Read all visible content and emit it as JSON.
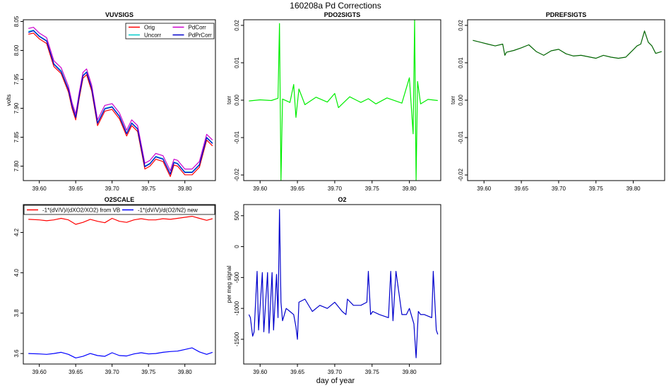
{
  "title": "160208a   Pd Corrections",
  "footer_xlabel": "day of year",
  "chart_data": [
    {
      "id": "vuvsigs",
      "type": "line",
      "title": "VUVSIGS",
      "ylabel": "volts",
      "xlim": [
        39.578,
        39.842
      ],
      "ylim": [
        7.775,
        8.053
      ],
      "xticks": [
        39.6,
        39.65,
        39.7,
        39.75,
        39.8
      ],
      "xtick_labels": [
        "39.60",
        "39.65",
        "39.70",
        "39.75",
        "39.80"
      ],
      "yticks": [
        7.8,
        7.85,
        7.9,
        7.95,
        8.0,
        8.05
      ],
      "ytick_labels": [
        "7.80",
        "7.85",
        "7.90",
        "7.95",
        "8.00",
        "8.05"
      ],
      "legend": [
        {
          "label": "Orig",
          "color": "#ff0000"
        },
        {
          "label": "PdCorr",
          "color": "#cc00cc"
        },
        {
          "label": "Uncorr",
          "color": "#00cccc"
        },
        {
          "label": "PdPrCorr",
          "color": "#0000cc"
        }
      ],
      "series": [
        {
          "name": "Orig",
          "color": "#ff0000",
          "x": [
            39.585,
            39.592,
            39.6,
            39.61,
            39.62,
            39.63,
            39.64,
            39.645,
            39.65,
            39.655,
            39.66,
            39.665,
            39.672,
            39.68,
            39.69,
            39.7,
            39.71,
            39.72,
            39.727,
            39.735,
            39.745,
            39.752,
            39.76,
            39.77,
            39.78,
            39.785,
            39.79,
            39.8,
            39.81,
            39.82,
            39.83,
            39.838
          ],
          "y": [
            8.028,
            8.03,
            8.02,
            8.012,
            7.972,
            7.96,
            7.928,
            7.9,
            7.88,
            7.918,
            7.952,
            7.958,
            7.93,
            7.87,
            7.895,
            7.898,
            7.882,
            7.852,
            7.87,
            7.86,
            7.795,
            7.8,
            7.812,
            7.808,
            7.782,
            7.802,
            7.8,
            7.785,
            7.785,
            7.798,
            7.845,
            7.835
          ]
        },
        {
          "name": "Uncorr",
          "color": "#00cccc",
          "x": [
            39.585,
            39.592,
            39.6,
            39.61,
            39.62,
            39.63,
            39.64,
            39.645,
            39.65,
            39.655,
            39.66,
            39.665,
            39.672,
            39.68,
            39.69,
            39.7,
            39.71,
            39.72,
            39.727,
            39.735,
            39.745,
            39.752,
            39.76,
            39.77,
            39.78,
            39.785,
            39.79,
            39.8,
            39.81,
            39.82,
            39.83,
            39.838
          ],
          "y": [
            8.033,
            8.035,
            8.025,
            8.017,
            7.977,
            7.965,
            7.933,
            7.905,
            7.885,
            7.923,
            7.957,
            7.963,
            7.935,
            7.875,
            7.9,
            7.903,
            7.887,
            7.857,
            7.875,
            7.865,
            7.8,
            7.805,
            7.817,
            7.813,
            7.787,
            7.807,
            7.805,
            7.79,
            7.79,
            7.803,
            7.85,
            7.84
          ]
        },
        {
          "name": "PdCorr",
          "color": "#cc00cc",
          "x": [
            39.585,
            39.592,
            39.6,
            39.61,
            39.62,
            39.63,
            39.64,
            39.645,
            39.65,
            39.655,
            39.66,
            39.665,
            39.672,
            39.68,
            39.69,
            39.7,
            39.71,
            39.72,
            39.727,
            39.735,
            39.745,
            39.752,
            39.76,
            39.77,
            39.78,
            39.785,
            39.79,
            39.8,
            39.81,
            39.82,
            39.83,
            39.838
          ],
          "y": [
            8.038,
            8.04,
            8.03,
            8.022,
            7.982,
            7.97,
            7.938,
            7.91,
            7.89,
            7.928,
            7.962,
            7.968,
            7.94,
            7.88,
            7.905,
            7.908,
            7.892,
            7.862,
            7.88,
            7.87,
            7.805,
            7.81,
            7.822,
            7.818,
            7.792,
            7.812,
            7.81,
            7.795,
            7.795,
            7.808,
            7.855,
            7.845
          ]
        },
        {
          "name": "PdPrCorr",
          "color": "#0000cc",
          "x": [
            39.585,
            39.592,
            39.6,
            39.61,
            39.62,
            39.63,
            39.64,
            39.645,
            39.65,
            39.655,
            39.66,
            39.665,
            39.672,
            39.68,
            39.69,
            39.7,
            39.71,
            39.72,
            39.727,
            39.735,
            39.745,
            39.752,
            39.76,
            39.77,
            39.78,
            39.785,
            39.79,
            39.8,
            39.81,
            39.82,
            39.83,
            39.838
          ],
          "y": [
            8.031,
            8.034,
            8.024,
            8.016,
            7.976,
            7.963,
            7.932,
            7.904,
            7.884,
            7.922,
            7.956,
            7.962,
            7.934,
            7.874,
            7.899,
            7.902,
            7.886,
            7.856,
            7.874,
            7.864,
            7.799,
            7.804,
            7.816,
            7.812,
            7.786,
            7.806,
            7.804,
            7.789,
            7.789,
            7.802,
            7.849,
            7.839
          ]
        }
      ]
    },
    {
      "id": "pdo2sigts",
      "type": "line",
      "title": "PDO2SIGTS",
      "ylabel": "torr",
      "xlim": [
        39.578,
        39.842
      ],
      "ylim": [
        -0.0215,
        0.0215
      ],
      "xticks": [
        39.6,
        39.65,
        39.7,
        39.75,
        39.8
      ],
      "xtick_labels": [
        "39.60",
        "39.65",
        "39.70",
        "39.75",
        "39.80"
      ],
      "yticks": [
        -0.02,
        -0.01,
        0.0,
        0.01,
        0.02
      ],
      "ytick_labels": [
        "-0.02",
        "-0.01",
        "0.00",
        "0.01",
        "0.02"
      ],
      "series": [
        {
          "name": "PDO2SIGTS",
          "color": "#00ee00",
          "x": [
            39.585,
            39.6,
            39.615,
            39.624,
            39.626,
            39.628,
            39.63,
            39.64,
            39.645,
            39.648,
            39.652,
            39.66,
            39.675,
            39.69,
            39.7,
            39.705,
            39.72,
            39.735,
            39.745,
            39.755,
            39.77,
            39.79,
            39.8,
            39.805,
            39.807,
            39.809,
            39.811,
            39.815,
            39.825,
            39.838
          ],
          "y": [
            -0.0002,
            0.0001,
            -0.0001,
            0.0005,
            0.0205,
            -0.0215,
            0.0003,
            -0.0006,
            0.0042,
            -0.0046,
            0.003,
            -0.0012,
            0.0008,
            -0.0005,
            0.0018,
            -0.002,
            0.0009,
            -0.0006,
            0.0004,
            -0.001,
            0.0006,
            -0.0008,
            0.006,
            -0.009,
            0.0215,
            -0.0215,
            0.005,
            -0.001,
            0.0002,
            -0.0001
          ]
        }
      ]
    },
    {
      "id": "pdrefsigts",
      "type": "line",
      "title": "PDREFSIGTS",
      "ylabel": "torr",
      "xlim": [
        39.578,
        39.842
      ],
      "ylim": [
        -0.0215,
        0.0215
      ],
      "xticks": [
        39.6,
        39.65,
        39.7,
        39.75,
        39.8
      ],
      "xtick_labels": [
        "39.60",
        "39.65",
        "39.70",
        "39.75",
        "39.80"
      ],
      "yticks": [
        -0.02,
        -0.01,
        0.0,
        0.01,
        0.02
      ],
      "ytick_labels": [
        "-0.02",
        "-0.01",
        "0.00",
        "0.01",
        "0.02"
      ],
      "series": [
        {
          "name": "PDREFSIGTS",
          "color": "#006400",
          "x": [
            39.585,
            39.595,
            39.605,
            39.615,
            39.625,
            39.628,
            39.63,
            39.64,
            39.65,
            39.66,
            39.67,
            39.68,
            39.69,
            39.7,
            39.71,
            39.72,
            39.73,
            39.74,
            39.75,
            39.76,
            39.77,
            39.78,
            39.79,
            39.8,
            39.805,
            39.81,
            39.815,
            39.82,
            39.825,
            39.83,
            39.838
          ],
          "y": [
            0.016,
            0.0155,
            0.015,
            0.0145,
            0.015,
            0.012,
            0.0128,
            0.0133,
            0.014,
            0.0148,
            0.013,
            0.012,
            0.0132,
            0.0136,
            0.0124,
            0.0118,
            0.012,
            0.0116,
            0.0112,
            0.012,
            0.0115,
            0.0112,
            0.0115,
            0.0135,
            0.0145,
            0.015,
            0.0185,
            0.0155,
            0.0145,
            0.0125,
            0.013
          ]
        }
      ]
    },
    {
      "id": "o2scale",
      "type": "line",
      "title": "O2SCALE",
      "ylabel": "",
      "xlim": [
        39.578,
        39.842
      ],
      "ylim": [
        3.548,
        4.338
      ],
      "xticks": [
        39.6,
        39.65,
        39.7,
        39.75,
        39.8
      ],
      "xtick_labels": [
        "39.60",
        "39.65",
        "39.70",
        "39.75",
        "39.80"
      ],
      "yticks": [
        3.6,
        3.8,
        4.0,
        4.2
      ],
      "ytick_labels": [
        "3.6",
        "3.8",
        "4.0",
        "4.2"
      ],
      "legend": [
        {
          "label": "-1*(dV/V)/(dXO2/XO2) from VB",
          "color": "#ff0000"
        },
        {
          "label": "-1*(dV/V)/d(O2/N2) new",
          "color": "#0000ff"
        }
      ],
      "series": [
        {
          "name": "-1*(dV/V)/(dXO2/XO2) from VB",
          "color": "#ff0000",
          "x": [
            39.585,
            39.6,
            39.61,
            39.62,
            39.63,
            39.64,
            39.65,
            39.66,
            39.67,
            39.68,
            39.69,
            39.7,
            39.71,
            39.72,
            39.73,
            39.74,
            39.75,
            39.76,
            39.77,
            39.78,
            39.79,
            39.8,
            39.81,
            39.82,
            39.83,
            39.838
          ],
          "y": [
            4.265,
            4.262,
            4.258,
            4.262,
            4.27,
            4.262,
            4.24,
            4.25,
            4.265,
            4.255,
            4.248,
            4.27,
            4.255,
            4.25,
            4.262,
            4.268,
            4.262,
            4.262,
            4.268,
            4.265,
            4.27,
            4.275,
            4.28,
            4.27,
            4.26,
            4.268
          ]
        },
        {
          "name": "-1*(dV/V)/d(O2/N2) new",
          "color": "#0000ff",
          "x": [
            39.585,
            39.6,
            39.61,
            39.62,
            39.63,
            39.64,
            39.65,
            39.66,
            39.67,
            39.68,
            39.69,
            39.7,
            39.71,
            39.72,
            39.73,
            39.74,
            39.75,
            39.76,
            39.77,
            39.78,
            39.79,
            39.8,
            39.81,
            39.82,
            39.83,
            39.838
          ],
          "y": [
            3.6,
            3.598,
            3.596,
            3.6,
            3.606,
            3.596,
            3.578,
            3.586,
            3.6,
            3.59,
            3.586,
            3.604,
            3.59,
            3.588,
            3.598,
            3.604,
            3.598,
            3.6,
            3.606,
            3.61,
            3.612,
            3.62,
            3.628,
            3.608,
            3.596,
            3.606
          ]
        }
      ]
    },
    {
      "id": "o2",
      "type": "line",
      "title": "O2",
      "ylabel": "per meg signal",
      "xlim": [
        39.578,
        39.842
      ],
      "ylim": [
        -1900,
        680
      ],
      "xticks": [
        39.6,
        39.65,
        39.7,
        39.75,
        39.8
      ],
      "xtick_labels": [
        "39.60",
        "39.65",
        "39.70",
        "39.75",
        "39.80"
      ],
      "yticks": [
        -1500,
        -1000,
        -500,
        0,
        500
      ],
      "ytick_labels": [
        "-1500",
        "-1000",
        "-500",
        "0",
        "500"
      ],
      "series": [
        {
          "name": "O2",
          "color": "#0000cc",
          "x": [
            39.585,
            39.587,
            39.59,
            39.592,
            39.596,
            39.598,
            39.603,
            39.605,
            39.61,
            39.612,
            39.616,
            39.618,
            39.622,
            39.624,
            39.626,
            39.628,
            39.63,
            39.635,
            39.64,
            39.645,
            39.648,
            39.65,
            39.652,
            39.66,
            39.67,
            39.68,
            39.69,
            39.7,
            39.71,
            39.715,
            39.717,
            39.725,
            39.735,
            39.743,
            39.745,
            39.748,
            39.751,
            39.76,
            39.772,
            39.775,
            39.778,
            39.782,
            39.79,
            39.796,
            39.8,
            39.806,
            39.809,
            39.812,
            39.815,
            39.82,
            39.83,
            39.832,
            39.836,
            39.838
          ],
          "y": [
            -1100,
            -1150,
            -1450,
            -1380,
            -400,
            -1350,
            -420,
            -1380,
            -420,
            -1400,
            -420,
            -1350,
            -450,
            -1150,
            600,
            -900,
            -1200,
            -1000,
            -1050,
            -1100,
            -1300,
            -1500,
            -900,
            -850,
            -1050,
            -950,
            -1000,
            -900,
            -1050,
            -1100,
            -850,
            -950,
            -950,
            -900,
            -400,
            -1100,
            -1050,
            -1100,
            -1150,
            -400,
            -1200,
            -400,
            -1100,
            -1100,
            -1000,
            -1250,
            -1800,
            -1050,
            -1100,
            -1100,
            -1150,
            -400,
            -1350,
            -1420
          ]
        }
      ]
    }
  ]
}
